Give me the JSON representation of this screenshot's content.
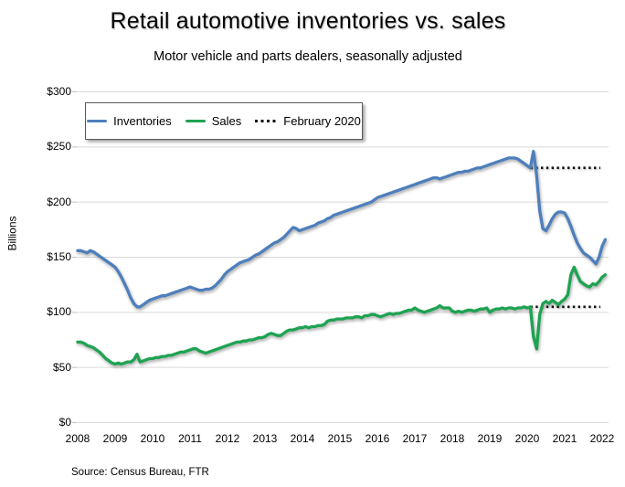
{
  "title": "Retail automotive inventories vs. sales",
  "subtitle": "Motor vehicle and parts dealers, seasonally adjusted",
  "source": "Source: Census Bureau, FTR",
  "colors": {
    "inventories": "#4E7FBC",
    "sales": "#1DA351",
    "reference": "#111111",
    "gridline": "#D9D9D9",
    "tick": "#BFBFBF"
  },
  "legend": [
    {
      "label": "Inventories",
      "type": "line",
      "color": "#4E7FBC"
    },
    {
      "label": "Sales",
      "type": "line",
      "color": "#1DA351"
    },
    {
      "label": "February 2020",
      "type": "dotted",
      "color": "#111111"
    }
  ],
  "chart_data": {
    "type": "line",
    "title": "Retail automotive inventories vs. sales",
    "subtitle": "Motor vehicle and parts dealers, seasonally adjusted",
    "ylabel": "Billions",
    "units": "billions of dollars, seasonally adjusted",
    "frequency": "monthly",
    "x_start_year": 2008,
    "x_end_label": "Feb 2022",
    "xlim": [
      2008,
      2022.25
    ],
    "ylim": [
      0,
      300
    ],
    "grid": true,
    "legend_position": "top-left-inside",
    "y_ticks": [
      {
        "value": 0,
        "label": "$0"
      },
      {
        "value": 50,
        "label": "$50"
      },
      {
        "value": 100,
        "label": "$100"
      },
      {
        "value": 150,
        "label": "$150"
      },
      {
        "value": 200,
        "label": "$200"
      },
      {
        "value": 250,
        "label": "$250"
      },
      {
        "value": 300,
        "label": "$300"
      }
    ],
    "x_ticks": [
      {
        "value": 2008,
        "label": "2008"
      },
      {
        "value": 2009,
        "label": "2009"
      },
      {
        "value": 2010,
        "label": "2010"
      },
      {
        "value": 2011,
        "label": "2011"
      },
      {
        "value": 2012,
        "label": "2012"
      },
      {
        "value": 2013,
        "label": "2013"
      },
      {
        "value": 2014,
        "label": "2014"
      },
      {
        "value": 2015,
        "label": "2015"
      },
      {
        "value": 2016,
        "label": "2016"
      },
      {
        "value": 2017,
        "label": "2017"
      },
      {
        "value": 2018,
        "label": "2018"
      },
      {
        "value": 2019,
        "label": "2019"
      },
      {
        "value": 2020,
        "label": "2020"
      },
      {
        "value": 2021,
        "label": "2021"
      },
      {
        "value": 2022,
        "label": "2022"
      }
    ],
    "series": [
      {
        "name": "Inventories",
        "color": "#4E7FBC",
        "values": [
          156,
          156,
          155,
          154,
          156,
          155,
          153,
          151,
          149,
          147,
          145,
          143,
          141,
          137,
          132,
          126,
          120,
          113,
          108,
          105,
          105,
          107,
          109,
          111,
          112,
          113,
          114,
          115,
          115,
          116,
          117,
          118,
          119,
          120,
          121,
          122,
          123,
          122,
          121,
          120,
          120,
          121,
          121,
          122,
          124,
          127,
          130,
          134,
          137,
          139,
          141,
          143,
          145,
          146,
          147,
          148,
          150,
          152,
          153,
          155,
          157,
          159,
          161,
          163,
          164,
          166,
          168,
          171,
          174,
          177,
          176,
          174,
          175,
          176,
          177,
          178,
          179,
          181,
          182,
          183,
          185,
          186,
          188,
          189,
          190,
          191,
          192,
          193,
          194,
          195,
          196,
          197,
          198,
          199,
          200,
          202,
          204,
          205,
          206,
          207,
          208,
          209,
          210,
          211,
          212,
          213,
          214,
          215,
          216,
          217,
          218,
          219,
          220,
          221,
          222,
          222,
          221,
          222,
          223,
          224,
          225,
          226,
          227,
          227,
          228,
          228,
          229,
          230,
          231,
          231,
          232,
          233,
          234,
          235,
          236,
          237,
          238,
          239,
          240,
          240,
          240,
          239,
          237,
          235,
          233,
          231,
          246,
          224,
          192,
          176,
          174,
          179,
          185,
          189,
          191,
          191,
          190,
          185,
          178,
          170,
          163,
          158,
          154,
          152,
          150,
          147,
          144,
          150,
          160,
          166
        ]
      },
      {
        "name": "Sales",
        "color": "#1DA351",
        "values": [
          73,
          73,
          72,
          70,
          69,
          68,
          66,
          64,
          61,
          58,
          56,
          54,
          53,
          54,
          53,
          54,
          55,
          55,
          57,
          62,
          55,
          56,
          57,
          58,
          58,
          59,
          59,
          60,
          60,
          61,
          61,
          62,
          63,
          64,
          64,
          65,
          66,
          67,
          67,
          65,
          64,
          63,
          64,
          65,
          66,
          67,
          68,
          69,
          70,
          71,
          72,
          73,
          73,
          74,
          74,
          75,
          75,
          76,
          77,
          77,
          78,
          80,
          81,
          80,
          79,
          79,
          81,
          83,
          84,
          84,
          85,
          86,
          86,
          87,
          86,
          87,
          87,
          88,
          88,
          89,
          92,
          93,
          93,
          94,
          94,
          94,
          95,
          95,
          95,
          96,
          96,
          95,
          97,
          97,
          98,
          98,
          97,
          96,
          97,
          98,
          99,
          98,
          99,
          99,
          100,
          101,
          102,
          102,
          104,
          102,
          101,
          100,
          101,
          102,
          103,
          104,
          106,
          104,
          104,
          104,
          101,
          100,
          101,
          100,
          101,
          102,
          102,
          101,
          102,
          103,
          103,
          104,
          100,
          102,
          103,
          103,
          104,
          103,
          104,
          104,
          103,
          104,
          104,
          105,
          104,
          105,
          78,
          67,
          98,
          108,
          110,
          108,
          111,
          109,
          107,
          110,
          112,
          116,
          134,
          141,
          134,
          128,
          126,
          124,
          123,
          126,
          125,
          128,
          132,
          134
        ]
      }
    ],
    "reference_lines": [
      {
        "name": "February 2020 inventories level",
        "legend_label": "February 2020",
        "value": 231,
        "x_from": 2020.083,
        "x_to": 2021.95,
        "style": "dotted",
        "color": "#111111"
      },
      {
        "name": "February 2020 sales level",
        "legend_label": "February 2020",
        "value": 105,
        "x_from": 2020.083,
        "x_to": 2021.95,
        "style": "dotted",
        "color": "#111111"
      }
    ]
  }
}
